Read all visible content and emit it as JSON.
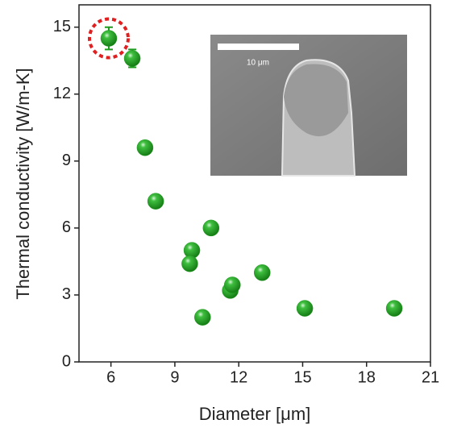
{
  "chart_data": {
    "type": "scatter",
    "xlabel": "Diameter [μm]",
    "ylabel": "Thermal conductivity [W/m-K]",
    "x": [
      5.9,
      7.0,
      7.6,
      8.1,
      9.8,
      9.7,
      10.7,
      10.3,
      11.6,
      11.7,
      13.1,
      15.1,
      19.3
    ],
    "series": [
      {
        "name": "Thermal conductivity",
        "color": "#1f9a1f",
        "values": [
          14.5,
          13.6,
          9.6,
          7.2,
          5.0,
          4.4,
          6.0,
          2.0,
          3.2,
          3.45,
          4.0,
          2.4,
          2.4
        ],
        "errors": [
          0.5,
          0.4,
          null,
          null,
          null,
          null,
          null,
          null,
          null,
          null,
          null,
          null,
          null
        ]
      }
    ],
    "xlim": [
      4.5,
      21
    ],
    "ylim": [
      0,
      16
    ],
    "xticks": [
      6,
      9,
      12,
      15,
      18,
      21
    ],
    "yticks": [
      0,
      3,
      6,
      9,
      12,
      15
    ],
    "inset_label": "10 μm"
  }
}
